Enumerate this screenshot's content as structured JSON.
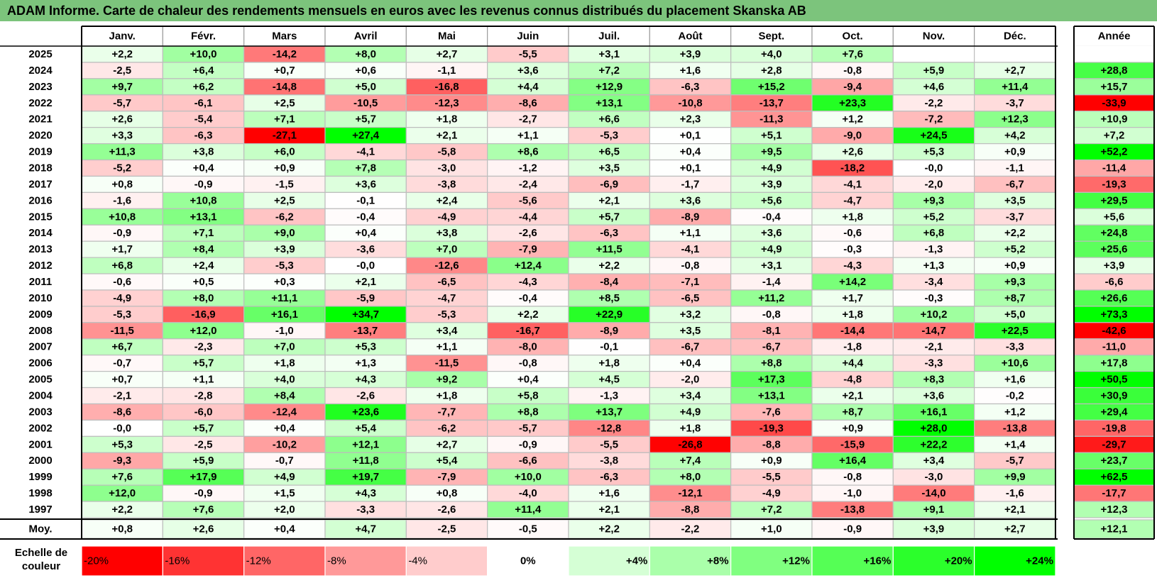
{
  "title": "ADAM Informe. Carte de chaleur des rendements mensuels en euros avec les revenus connus distribués du placement Skanska AB",
  "chart_data": {
    "type": "heatmap",
    "months": [
      "Janv.",
      "Févr.",
      "Mars",
      "Avril",
      "Mai",
      "Juin",
      "Juil.",
      "Août",
      "Sept.",
      "Oct.",
      "Nov.",
      "Déc."
    ],
    "year_header": "Année",
    "rows": [
      {
        "year": "2025",
        "values": [
          "+2,2",
          "+10,0",
          "-14,2",
          "+8,0",
          "+2,7",
          "-5,5",
          "+3,1",
          "+3,9",
          "+4,0",
          "+7,6",
          null,
          null
        ],
        "annual": null
      },
      {
        "year": "2024",
        "values": [
          "-2,5",
          "+6,4",
          "+0,7",
          "+0,6",
          "-1,1",
          "+3,6",
          "+7,2",
          "+1,6",
          "+2,8",
          "-0,8",
          "+5,9",
          "+2,7"
        ],
        "annual": "+28,8"
      },
      {
        "year": "2023",
        "values": [
          "+9,7",
          "+6,2",
          "-14,8",
          "+5,0",
          "-16,8",
          "+4,4",
          "+12,9",
          "-6,3",
          "+15,2",
          "-9,4",
          "+4,6",
          "+11,4"
        ],
        "annual": "+15,7"
      },
      {
        "year": "2022",
        "values": [
          "-5,7",
          "-6,1",
          "+2,5",
          "-10,5",
          "-12,3",
          "-8,6",
          "+13,1",
          "-10,8",
          "-13,7",
          "+23,3",
          "-2,2",
          "-3,7"
        ],
        "annual": "-33,9"
      },
      {
        "year": "2021",
        "values": [
          "+2,6",
          "-5,4",
          "+7,1",
          "+5,7",
          "+1,8",
          "-2,7",
          "+6,6",
          "+2,3",
          "-11,3",
          "+1,2",
          "-7,2",
          "+12,3"
        ],
        "annual": "+10,9"
      },
      {
        "year": "2020",
        "values": [
          "+3,3",
          "-6,3",
          "-27,1",
          "+27,4",
          "+2,1",
          "+1,1",
          "-5,3",
          "+0,1",
          "+5,1",
          "-9,0",
          "+24,5",
          "+4,2"
        ],
        "annual": "+7,2"
      },
      {
        "year": "2019",
        "values": [
          "+11,3",
          "+3,8",
          "+6,0",
          "-4,1",
          "-5,8",
          "+8,6",
          "+6,5",
          "+0,4",
          "+9,5",
          "+2,6",
          "+5,3",
          "+0,9"
        ],
        "annual": "+52,2"
      },
      {
        "year": "2018",
        "values": [
          "-5,2",
          "+0,4",
          "+0,9",
          "+7,8",
          "-3,0",
          "-1,2",
          "+3,5",
          "+0,1",
          "+4,9",
          "-18,2",
          "-0,0",
          "-1,1"
        ],
        "annual": "-11,4"
      },
      {
        "year": "2017",
        "values": [
          "+0,8",
          "-0,9",
          "-1,5",
          "+3,6",
          "-3,8",
          "-2,4",
          "-6,9",
          "-1,7",
          "+3,9",
          "-4,1",
          "-2,0",
          "-6,7"
        ],
        "annual": "-19,3"
      },
      {
        "year": "2016",
        "values": [
          "-1,6",
          "+10,8",
          "+2,5",
          "-0,1",
          "+2,4",
          "-5,6",
          "+2,1",
          "+3,6",
          "+5,6",
          "-4,7",
          "+9,3",
          "+3,5"
        ],
        "annual": "+29,5"
      },
      {
        "year": "2015",
        "values": [
          "+10,8",
          "+13,1",
          "-6,2",
          "-0,4",
          "-4,9",
          "-4,4",
          "+5,7",
          "-8,9",
          "-0,4",
          "+1,8",
          "+5,2",
          "-3,7"
        ],
        "annual": "+5,6"
      },
      {
        "year": "2014",
        "values": [
          "-0,9",
          "+7,1",
          "+9,0",
          "+0,4",
          "+3,8",
          "-2,6",
          "-6,3",
          "+1,1",
          "+3,6",
          "-0,6",
          "+6,8",
          "+2,2"
        ],
        "annual": "+24,8"
      },
      {
        "year": "2013",
        "values": [
          "+1,7",
          "+8,4",
          "+3,9",
          "-3,6",
          "+7,0",
          "-7,9",
          "+11,5",
          "-4,1",
          "+4,9",
          "-0,3",
          "-1,3",
          "+5,2"
        ],
        "annual": "+25,6"
      },
      {
        "year": "2012",
        "values": [
          "+6,8",
          "+2,4",
          "-5,3",
          "-0,0",
          "-12,6",
          "+12,4",
          "+2,2",
          "-0,8",
          "+3,1",
          "-4,3",
          "+1,3",
          "+0,9"
        ],
        "annual": "+3,9"
      },
      {
        "year": "2011",
        "values": [
          "-0,6",
          "+0,5",
          "+0,3",
          "+2,1",
          "-6,5",
          "-4,3",
          "-8,4",
          "-7,1",
          "-1,4",
          "+14,2",
          "-3,4",
          "+9,3"
        ],
        "annual": "-6,6"
      },
      {
        "year": "2010",
        "values": [
          "-4,9",
          "+8,0",
          "+11,1",
          "-5,9",
          "-4,7",
          "-0,4",
          "+8,5",
          "-6,5",
          "+11,2",
          "+1,7",
          "-0,3",
          "+8,7"
        ],
        "annual": "+26,6"
      },
      {
        "year": "2009",
        "values": [
          "-5,3",
          "-16,9",
          "+16,1",
          "+34,7",
          "-5,3",
          "+2,2",
          "+22,9",
          "+3,2",
          "-0,8",
          "+1,8",
          "+10,2",
          "+5,0"
        ],
        "annual": "+73,3"
      },
      {
        "year": "2008",
        "values": [
          "-11,5",
          "+12,0",
          "-1,0",
          "-13,7",
          "+3,4",
          "-16,7",
          "-8,9",
          "+3,5",
          "-8,1",
          "-14,4",
          "-14,7",
          "+22,5"
        ],
        "annual": "-42,6"
      },
      {
        "year": "2007",
        "values": [
          "+6,7",
          "-2,3",
          "+7,0",
          "+5,3",
          "+1,1",
          "-8,0",
          "-0,1",
          "-6,7",
          "-6,7",
          "-1,8",
          "-2,1",
          "-3,3"
        ],
        "annual": "-11,0"
      },
      {
        "year": "2006",
        "values": [
          "-0,7",
          "+5,7",
          "+1,8",
          "+1,3",
          "-11,5",
          "-0,8",
          "+1,8",
          "+0,4",
          "+8,8",
          "+4,4",
          "-3,3",
          "+10,6"
        ],
        "annual": "+17,8"
      },
      {
        "year": "2005",
        "values": [
          "+0,7",
          "+1,1",
          "+4,0",
          "+4,3",
          "+9,2",
          "+0,4",
          "+4,5",
          "-2,0",
          "+17,3",
          "-4,8",
          "+8,3",
          "+1,6"
        ],
        "annual": "+50,5"
      },
      {
        "year": "2004",
        "values": [
          "-2,1",
          "-2,8",
          "+8,4",
          "-2,6",
          "+1,8",
          "+5,8",
          "-1,3",
          "+3,4",
          "+13,1",
          "+2,1",
          "+3,6",
          "-0,2"
        ],
        "annual": "+30,9"
      },
      {
        "year": "2003",
        "values": [
          "-8,6",
          "-6,0",
          "-12,4",
          "+23,6",
          "-7,7",
          "+8,8",
          "+13,7",
          "+4,9",
          "-7,6",
          "+8,7",
          "+16,1",
          "+1,2"
        ],
        "annual": "+29,4"
      },
      {
        "year": "2002",
        "values": [
          "-0,0",
          "+5,7",
          "+0,4",
          "+5,4",
          "-6,2",
          "-5,7",
          "-12,8",
          "+1,8",
          "-19,3",
          "+0,9",
          "+28,0",
          "-13,8"
        ],
        "annual": "-19,8"
      },
      {
        "year": "2001",
        "values": [
          "+5,3",
          "-2,5",
          "-10,2",
          "+12,1",
          "+2,7",
          "-0,9",
          "-5,5",
          "-26,8",
          "-8,8",
          "-15,9",
          "+22,2",
          "+1,4"
        ],
        "annual": "-29,7"
      },
      {
        "year": "2000",
        "values": [
          "-9,3",
          "+5,9",
          "-0,7",
          "+11,8",
          "+5,4",
          "-6,6",
          "-3,8",
          "+7,4",
          "+0,9",
          "+16,4",
          "+3,4",
          "-5,7"
        ],
        "annual": "+23,7"
      },
      {
        "year": "1999",
        "values": [
          "+7,6",
          "+17,9",
          "+4,9",
          "+19,7",
          "-7,9",
          "+10,0",
          "-6,3",
          "+8,0",
          "-5,5",
          "-0,8",
          "-3,0",
          "+9,9"
        ],
        "annual": "+62,5"
      },
      {
        "year": "1998",
        "values": [
          "+12,0",
          "-0,9",
          "+1,5",
          "+4,3",
          "+0,8",
          "-4,0",
          "+1,6",
          "-12,1",
          "-4,9",
          "-1,0",
          "-14,0",
          "-1,6"
        ],
        "annual": "-17,7"
      },
      {
        "year": "1997",
        "values": [
          "+2,2",
          "+7,6",
          "+2,0",
          "-3,3",
          "-2,6",
          "+11,4",
          "+2,1",
          "-8,8",
          "+7,2",
          "-13,8",
          "+9,1",
          "+2,1"
        ],
        "annual": "+12,3"
      }
    ],
    "average": {
      "label": "Moy.",
      "values": [
        "+0,8",
        "+2,6",
        "+0,4",
        "+4,7",
        "-2,5",
        "-0,5",
        "+2,2",
        "-2,2",
        "+1,0",
        "-0,9",
        "+3,9",
        "+2,7"
      ],
      "annual": "+12,1"
    },
    "scale": {
      "label": "Echelle de couleur",
      "steps": [
        "-20%",
        "-16%",
        "-12%",
        "-8%",
        "-4%",
        "0%",
        "+4%",
        "+8%",
        "+12%",
        "+16%",
        "+20%",
        "+24%"
      ],
      "step_values": [
        -20,
        -16,
        -12,
        -8,
        -4,
        0,
        4,
        8,
        12,
        16,
        20,
        24
      ]
    },
    "colors": {
      "negative": "#ff0000",
      "positive": "#00ff00",
      "neutral": "#ffffff",
      "title_bg": "#7cc47c"
    }
  }
}
